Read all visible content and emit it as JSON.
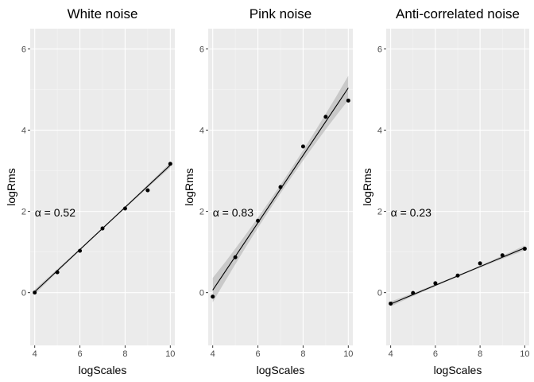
{
  "chart_data": [
    {
      "type": "scatter",
      "title": "White noise",
      "xlabel": "logScales",
      "ylabel": "logRms",
      "xlim": [
        3.8,
        10.2
      ],
      "ylim": [
        -1.3,
        6.5
      ],
      "xticks": [
        4,
        6,
        8,
        10
      ],
      "yticks": [
        0,
        2,
        4,
        6
      ],
      "x": [
        4,
        5,
        6,
        7,
        8,
        9,
        10
      ],
      "y": [
        0.0,
        0.5,
        1.03,
        1.58,
        2.07,
        2.52,
        3.17
      ],
      "fit": {
        "intercept": -2.06,
        "slope": 0.52,
        "band": 0.06
      },
      "annotation": {
        "symbol": "α",
        "text": " = 0.52",
        "x": 4.0,
        "y": 1.97
      }
    },
    {
      "type": "scatter",
      "title": "Pink noise",
      "xlabel": "logScales",
      "ylabel": "logRms",
      "xlim": [
        3.8,
        10.2
      ],
      "ylim": [
        -1.3,
        6.5
      ],
      "xticks": [
        4,
        6,
        8,
        10
      ],
      "yticks": [
        0,
        2,
        4,
        6
      ],
      "x": [
        4,
        5,
        6,
        7,
        8,
        9,
        10
      ],
      "y": [
        -0.1,
        0.87,
        1.77,
        2.6,
        3.6,
        4.33,
        4.73
      ],
      "fit": {
        "intercept": -3.26,
        "slope": 0.83,
        "band": 0.3
      },
      "annotation": {
        "symbol": "α",
        "text": " = 0.83",
        "x": 4.0,
        "y": 1.97
      }
    },
    {
      "type": "scatter",
      "title": "Anti-correlated noise",
      "xlabel": "logScales",
      "ylabel": "logRms",
      "xlim": [
        3.8,
        10.2
      ],
      "ylim": [
        -1.3,
        6.5
      ],
      "xticks": [
        4,
        6,
        8,
        10
      ],
      "yticks": [
        0,
        2,
        4,
        6
      ],
      "x": [
        4,
        5,
        6,
        7,
        8,
        9,
        10
      ],
      "y": [
        -0.27,
        -0.01,
        0.23,
        0.42,
        0.72,
        0.92,
        1.08
      ],
      "fit": {
        "intercept": -1.2,
        "slope": 0.23,
        "band": 0.06
      },
      "annotation": {
        "symbol": "α",
        "text": " = 0.23",
        "x": 4.0,
        "y": 1.97
      }
    }
  ],
  "colors": {
    "panel_bg": "#ebebeb",
    "grid_major": "#ffffff",
    "grid_minor": "#f5f5f5",
    "point": "#000000",
    "fit_line": "#000000",
    "ribbon": "#bebebe"
  }
}
